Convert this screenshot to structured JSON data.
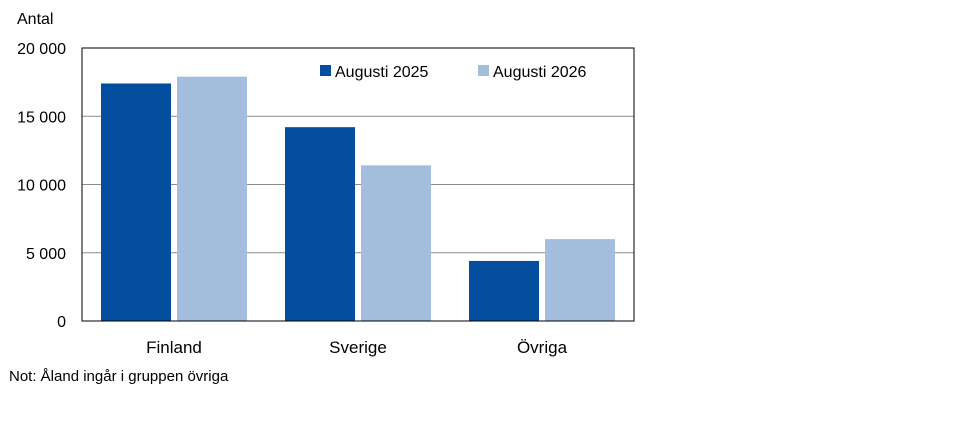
{
  "chart_data": {
    "type": "bar",
    "ylabel": "Antal",
    "categories": [
      "Finland",
      "Sverige",
      "Övriga"
    ],
    "series": [
      {
        "name": "Augusti 2025",
        "color": "#044ea0",
        "values": [
          17400,
          14200,
          4400
        ]
      },
      {
        "name": "Augusti 2026",
        "color": "#a3bddd",
        "values": [
          17900,
          11400,
          6000
        ]
      }
    ],
    "ylim": [
      0,
      20000
    ],
    "yticks": [
      0,
      5000,
      10000,
      15000,
      20000
    ],
    "ytick_labels": [
      "0",
      "5 000",
      "10 000",
      "15 000",
      "20 000"
    ],
    "grid": true,
    "legend": "top-right",
    "note": "Not: Åland ingår i gruppen övriga"
  }
}
